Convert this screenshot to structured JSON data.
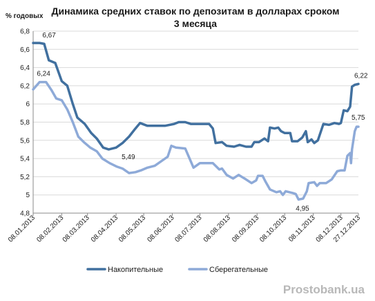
{
  "chart_data": {
    "type": "line",
    "title": [
      "Динамика средних ставок по депозитам в долларах сроком",
      "3 месяца"
    ],
    "ylabel": "% годовых",
    "ylim": [
      4.8,
      6.8
    ],
    "yticks": [
      4.8,
      5,
      5.2,
      5.4,
      5.6,
      5.8,
      6,
      6.2,
      6.4,
      6.6,
      6.8
    ],
    "ytick_labels": [
      "4,8",
      "5",
      "5,2",
      "5,4",
      "5,6",
      "5,8",
      "6",
      "6,2",
      "6,4",
      "6,6",
      "6,8"
    ],
    "xlim": [
      "2013-01-08",
      "2013-12-27"
    ],
    "x_tick_labels": [
      "08.01.2013",
      "08.02.2013",
      "08.03.2013",
      "08.04.2013",
      "08.05.2013",
      "08.06.2013",
      "08.07.2013",
      "08.08.2013",
      "08.09.2013",
      "08.10.2013",
      "08.11.2013",
      "08.12.2013",
      "27.12.2013"
    ],
    "grid": {
      "horizontal": true,
      "vertical": false
    },
    "legend_position": "bottom",
    "series": [
      {
        "name": "Накопительные",
        "color": "#41709f",
        "points": [
          [
            "2013-01-08",
            6.67
          ],
          [
            "2013-01-15",
            6.67
          ],
          [
            "2013-01-20",
            6.66
          ],
          [
            "2013-01-25",
            6.48
          ],
          [
            "2013-02-01",
            6.45
          ],
          [
            "2013-02-08",
            6.25
          ],
          [
            "2013-02-14",
            6.2
          ],
          [
            "2013-02-20",
            6.0
          ],
          [
            "2013-02-25",
            5.85
          ],
          [
            "2013-03-05",
            5.78
          ],
          [
            "2013-03-12",
            5.68
          ],
          [
            "2013-03-18",
            5.62
          ],
          [
            "2013-03-25",
            5.52
          ],
          [
            "2013-03-31",
            5.5
          ],
          [
            "2013-04-08",
            5.52
          ],
          [
            "2013-04-15",
            5.57
          ],
          [
            "2013-04-22",
            5.64
          ],
          [
            "2013-04-29",
            5.73
          ],
          [
            "2013-05-04",
            5.79
          ],
          [
            "2013-05-12",
            5.76
          ],
          [
            "2013-05-20",
            5.76
          ],
          [
            "2013-05-31",
            5.76
          ],
          [
            "2013-06-10",
            5.78
          ],
          [
            "2013-06-15",
            5.8
          ],
          [
            "2013-06-22",
            5.8
          ],
          [
            "2013-06-28",
            5.78
          ],
          [
            "2013-07-05",
            5.78
          ],
          [
            "2013-07-12",
            5.78
          ],
          [
            "2013-07-18",
            5.78
          ],
          [
            "2013-07-22",
            5.73
          ],
          [
            "2013-07-25",
            5.57
          ],
          [
            "2013-08-01",
            5.58
          ],
          [
            "2013-08-06",
            5.54
          ],
          [
            "2013-08-14",
            5.53
          ],
          [
            "2013-08-20",
            5.55
          ],
          [
            "2013-08-27",
            5.53
          ],
          [
            "2013-09-02",
            5.53
          ],
          [
            "2013-09-05",
            5.58
          ],
          [
            "2013-09-10",
            5.58
          ],
          [
            "2013-09-16",
            5.62
          ],
          [
            "2013-09-20",
            5.59
          ],
          [
            "2013-09-22",
            5.74
          ],
          [
            "2013-09-27",
            5.73
          ],
          [
            "2013-10-01",
            5.74
          ],
          [
            "2013-10-04",
            5.7
          ],
          [
            "2013-10-08",
            5.68
          ],
          [
            "2013-10-14",
            5.68
          ],
          [
            "2013-10-16",
            5.59
          ],
          [
            "2013-10-22",
            5.59
          ],
          [
            "2013-10-27",
            5.63
          ],
          [
            "2013-10-31",
            5.7
          ],
          [
            "2013-11-02",
            5.58
          ],
          [
            "2013-11-06",
            5.61
          ],
          [
            "2013-11-09",
            5.57
          ],
          [
            "2013-11-13",
            5.6
          ],
          [
            "2013-11-19",
            5.78
          ],
          [
            "2013-11-25",
            5.77
          ],
          [
            "2013-12-01",
            5.79
          ],
          [
            "2013-12-06",
            5.78
          ],
          [
            "2013-12-08",
            5.79
          ],
          [
            "2013-12-11",
            5.93
          ],
          [
            "2013-12-15",
            5.92
          ],
          [
            "2013-12-18",
            5.97
          ],
          [
            "2013-12-20",
            6.19
          ],
          [
            "2013-12-23",
            6.21
          ],
          [
            "2013-12-27",
            6.22
          ]
        ]
      },
      {
        "name": "Сберегательные",
        "color": "#8eaad8",
        "points": [
          [
            "2013-01-08",
            6.16
          ],
          [
            "2013-01-15",
            6.24
          ],
          [
            "2013-01-22",
            6.24
          ],
          [
            "2013-01-28",
            6.15
          ],
          [
            "2013-02-02",
            6.06
          ],
          [
            "2013-02-08",
            6.04
          ],
          [
            "2013-02-14",
            5.94
          ],
          [
            "2013-02-20",
            5.8
          ],
          [
            "2013-02-26",
            5.64
          ],
          [
            "2013-03-04",
            5.58
          ],
          [
            "2013-03-11",
            5.52
          ],
          [
            "2013-03-18",
            5.48
          ],
          [
            "2013-03-24",
            5.4
          ],
          [
            "2013-04-01",
            5.35
          ],
          [
            "2013-04-09",
            5.31
          ],
          [
            "2013-04-15",
            5.29
          ],
          [
            "2013-04-22",
            5.24
          ],
          [
            "2013-04-29",
            5.25
          ],
          [
            "2013-05-05",
            5.27
          ],
          [
            "2013-05-12",
            5.3
          ],
          [
            "2013-05-20",
            5.32
          ],
          [
            "2013-05-27",
            5.37
          ],
          [
            "2013-06-03",
            5.42
          ],
          [
            "2013-06-07",
            5.54
          ],
          [
            "2013-06-12",
            5.52
          ],
          [
            "2013-06-22",
            5.51
          ],
          [
            "2013-06-25",
            5.44
          ],
          [
            "2013-07-01",
            5.3
          ],
          [
            "2013-07-08",
            5.35
          ],
          [
            "2013-07-22",
            5.35
          ],
          [
            "2013-07-29",
            5.28
          ],
          [
            "2013-08-01",
            5.29
          ],
          [
            "2013-08-06",
            5.22
          ],
          [
            "2013-08-13",
            5.18
          ],
          [
            "2013-08-19",
            5.22
          ],
          [
            "2013-08-27",
            5.17
          ],
          [
            "2013-09-02",
            5.13
          ],
          [
            "2013-09-07",
            5.16
          ],
          [
            "2013-09-09",
            5.21
          ],
          [
            "2013-09-14",
            5.21
          ],
          [
            "2013-09-17",
            5.15
          ],
          [
            "2013-09-22",
            5.06
          ],
          [
            "2013-09-29",
            5.03
          ],
          [
            "2013-10-03",
            5.04
          ],
          [
            "2013-10-06",
            5.0
          ],
          [
            "2013-10-09",
            5.04
          ],
          [
            "2013-10-17",
            5.02
          ],
          [
            "2013-10-20",
            5.01
          ],
          [
            "2013-10-23",
            4.95
          ],
          [
            "2013-10-28",
            4.96
          ],
          [
            "2013-11-01",
            5.04
          ],
          [
            "2013-11-03",
            5.13
          ],
          [
            "2013-11-09",
            5.14
          ],
          [
            "2013-11-12",
            5.1
          ],
          [
            "2013-11-15",
            5.13
          ],
          [
            "2013-11-22",
            5.13
          ],
          [
            "2013-11-28",
            5.17
          ],
          [
            "2013-12-04",
            5.26
          ],
          [
            "2013-12-08",
            5.27
          ],
          [
            "2013-12-12",
            5.27
          ],
          [
            "2013-12-15",
            5.43
          ],
          [
            "2013-12-18",
            5.46
          ],
          [
            "2013-12-19",
            5.35
          ],
          [
            "2013-12-20",
            5.5
          ],
          [
            "2013-12-23",
            5.7
          ],
          [
            "2013-12-25",
            5.75
          ],
          [
            "2013-12-27",
            5.75
          ]
        ]
      }
    ],
    "data_labels": [
      {
        "text": "6,67",
        "series": 0,
        "date": "2013-01-15",
        "value": 6.67
      },
      {
        "text": "5,49",
        "series": 0,
        "date": "2013-04-05",
        "value": 5.5
      },
      {
        "text": "6,22",
        "series": 0,
        "date": "2013-12-27",
        "value": 6.22
      },
      {
        "text": "6,24",
        "series": 1,
        "date": "2013-01-18",
        "value": 6.24
      },
      {
        "text": "4,95",
        "series": 1,
        "date": "2013-10-23",
        "value": 4.95
      },
      {
        "text": "5,75",
        "series": 1,
        "date": "2013-12-27",
        "value": 5.75
      }
    ]
  },
  "watermark": "Prostobank.ua"
}
